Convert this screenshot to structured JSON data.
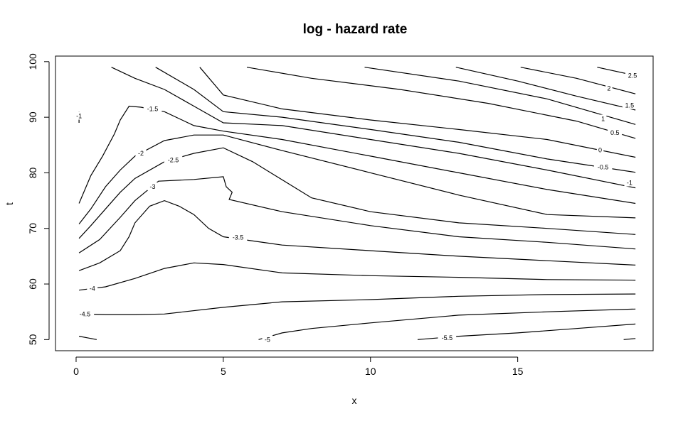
{
  "chart_data": {
    "type": "contour",
    "title": "log - hazard rate",
    "xlabel": "x",
    "ylabel": "t",
    "xlim": [
      -0.7,
      19.6
    ],
    "ylim": [
      48,
      101
    ],
    "x_ticks": [
      0,
      5,
      10,
      15
    ],
    "y_ticks": [
      50,
      60,
      70,
      80,
      90,
      100
    ],
    "grid": false,
    "legend": "none",
    "line_color": "#000000",
    "contours": [
      {
        "level": "2.5",
        "points": [
          [
            17.7,
            99
          ],
          [
            19.0,
            97.5
          ]
        ],
        "label_at": [
          18.9,
          97.5
        ]
      },
      {
        "level": "2",
        "points": [
          [
            15.1,
            99
          ],
          [
            17.0,
            97
          ],
          [
            19.0,
            94.2
          ]
        ],
        "label_at": [
          18.1,
          95.2
        ]
      },
      {
        "level": "1.5",
        "points": [
          [
            12.9,
            99
          ],
          [
            15.0,
            96.5
          ],
          [
            17.0,
            93.8
          ],
          [
            19.0,
            91.3
          ]
        ],
        "label_at": [
          18.8,
          92.1
        ]
      },
      {
        "level": "1",
        "points": [
          [
            9.8,
            99
          ],
          [
            13.0,
            96.5
          ],
          [
            16.0,
            93.3
          ],
          [
            19.0,
            88.7
          ]
        ],
        "label_at": [
          17.9,
          89.7
        ]
      },
      {
        "level": "0.5",
        "points": [
          [
            5.8,
            99
          ],
          [
            8.0,
            97
          ],
          [
            11.0,
            95
          ],
          [
            14.0,
            92.5
          ],
          [
            17.0,
            89.3
          ],
          [
            19.0,
            86.2
          ]
        ],
        "label_at": [
          18.3,
          87.2
        ]
      },
      {
        "level": "0",
        "points": [
          [
            4.2,
            99
          ],
          [
            5.0,
            94
          ],
          [
            7.0,
            91.5
          ],
          [
            10.0,
            89.5
          ],
          [
            13.0,
            87.8
          ],
          [
            16.0,
            86
          ],
          [
            19.0,
            82.8
          ]
        ],
        "label_at": [
          17.8,
          84.1
        ]
      },
      {
        "level": "-0.5",
        "points": [
          [
            2.7,
            99
          ],
          [
            4.0,
            95
          ],
          [
            5.0,
            91
          ],
          [
            7.0,
            90
          ],
          [
            10.0,
            87.8
          ],
          [
            13.0,
            85.5
          ],
          [
            16.0,
            82.5
          ],
          [
            19.0,
            80.1
          ]
        ],
        "label_at": [
          17.9,
          81.0
        ]
      },
      {
        "level": "-1",
        "points": [
          [
            1.2,
            99
          ],
          [
            2.0,
            97
          ],
          [
            3.0,
            95
          ],
          [
            4.0,
            92
          ],
          [
            5.0,
            89
          ],
          [
            7.0,
            88.5
          ],
          [
            10.0,
            86
          ],
          [
            13.0,
            83.5
          ],
          [
            16.0,
            80.5
          ],
          [
            19.0,
            77.3
          ]
        ],
        "label_at": [
          18.8,
          78.2
        ]
      },
      {
        "level": "-1.5",
        "points": [
          [
            0.1,
            74.5
          ],
          [
            0.5,
            79.5
          ],
          [
            0.9,
            83
          ],
          [
            1.3,
            87
          ],
          [
            1.5,
            89.5
          ],
          [
            1.8,
            92
          ],
          [
            2.2,
            91.8
          ],
          [
            3.0,
            91
          ],
          [
            4.0,
            88.5
          ],
          [
            5.0,
            87.5
          ],
          [
            7.0,
            86
          ],
          [
            10.0,
            83
          ],
          [
            13.0,
            80
          ],
          [
            16.0,
            77
          ],
          [
            19.0,
            74.5
          ]
        ],
        "label_at": [
          2.6,
          91.5
        ]
      },
      {
        "level": "-2",
        "points": [
          [
            0.1,
            70.8
          ],
          [
            0.5,
            73.5
          ],
          [
            1.0,
            77.5
          ],
          [
            1.5,
            80.5
          ],
          [
            2.0,
            83
          ],
          [
            3.0,
            85.8
          ],
          [
            4.0,
            86.8
          ],
          [
            5.0,
            86.8
          ],
          [
            7.0,
            84
          ],
          [
            10.0,
            80
          ],
          [
            13.0,
            76
          ],
          [
            16.0,
            72.5
          ],
          [
            19.0,
            71.9
          ]
        ],
        "label_at": [
          2.2,
          83.5
        ]
      },
      {
        "level": "-2.5",
        "points": [
          [
            0.1,
            68.2
          ],
          [
            0.5,
            70.5
          ],
          [
            1.0,
            73.5
          ],
          [
            1.5,
            76.5
          ],
          [
            2.0,
            79
          ],
          [
            3.0,
            82
          ],
          [
            4.0,
            83.5
          ],
          [
            5.0,
            84.5
          ],
          [
            6.0,
            82
          ],
          [
            8.0,
            75.5
          ],
          [
            10.0,
            73
          ],
          [
            13.0,
            71
          ],
          [
            16.0,
            70
          ],
          [
            19.0,
            68.9
          ]
        ],
        "label_at": [
          3.3,
          82.3
        ]
      },
      {
        "level": "-3",
        "points": [
          [
            0.1,
            65.6
          ],
          [
            0.8,
            68
          ],
          [
            1.5,
            72
          ],
          [
            2.0,
            75
          ],
          [
            2.8,
            78.5
          ],
          [
            4.0,
            78.8
          ],
          [
            5.0,
            79.3
          ],
          [
            5.1,
            77.5
          ],
          [
            5.3,
            76.5
          ],
          [
            5.2,
            75.2
          ],
          [
            7.0,
            73
          ],
          [
            10.0,
            70.5
          ],
          [
            13.0,
            68.5
          ],
          [
            16.0,
            67.5
          ],
          [
            19.0,
            66.3
          ]
        ],
        "label_at": [
          2.6,
          77.5
        ]
      },
      {
        "level": "-3.5",
        "points": [
          [
            0.1,
            62.4
          ],
          [
            0.8,
            63.8
          ],
          [
            1.5,
            66
          ],
          [
            1.8,
            68.5
          ],
          [
            2.0,
            71
          ],
          [
            2.5,
            74
          ],
          [
            3.0,
            75
          ],
          [
            3.5,
            74
          ],
          [
            4.0,
            72.5
          ],
          [
            4.5,
            70
          ],
          [
            5.0,
            68.5
          ],
          [
            7.0,
            67
          ],
          [
            10.0,
            66
          ],
          [
            13.0,
            65
          ],
          [
            16.0,
            64.2
          ],
          [
            19.0,
            63.4
          ]
        ],
        "label_at": [
          5.5,
          68.4
        ]
      },
      {
        "level": "-4",
        "points": [
          [
            0.1,
            58.9
          ],
          [
            1.0,
            59.5
          ],
          [
            2.0,
            61
          ],
          [
            3.0,
            62.8
          ],
          [
            4.0,
            63.8
          ],
          [
            5.0,
            63.5
          ],
          [
            7.0,
            62
          ],
          [
            10.0,
            61.5
          ],
          [
            13.0,
            61.2
          ],
          [
            16.0,
            60.8
          ],
          [
            19.0,
            60.7
          ]
        ],
        "label_at": [
          0.55,
          59.2
        ]
      },
      {
        "level": "-4.5",
        "points": [
          [
            0.1,
            54.6
          ],
          [
            1.0,
            54.5
          ],
          [
            2.0,
            54.5
          ],
          [
            3.0,
            54.6
          ],
          [
            5.0,
            55.8
          ],
          [
            7.0,
            56.8
          ],
          [
            10.0,
            57.2
          ],
          [
            13.0,
            57.8
          ],
          [
            16.0,
            58.1
          ],
          [
            19.0,
            58.2
          ]
        ],
        "label_at": [
          0.3,
          54.6
        ]
      },
      {
        "level": "-5",
        "points": [
          [
            6.2,
            50
          ],
          [
            7.0,
            51.2
          ],
          [
            8.0,
            52
          ],
          [
            10.0,
            53
          ],
          [
            13.0,
            54.4
          ],
          [
            16.0,
            55
          ],
          [
            19.0,
            55.5
          ]
        ],
        "label_at": [
          6.5,
          50.0
        ]
      },
      {
        "level": "-5.5",
        "points": [
          [
            11.6,
            50
          ],
          [
            13.0,
            50.6
          ],
          [
            15.0,
            51.2
          ],
          [
            17.0,
            52
          ],
          [
            19.0,
            52.8
          ]
        ],
        "label_at": [
          12.6,
          50.3
        ]
      },
      {
        "level": "",
        "points": [
          [
            0.1,
            50.6
          ],
          [
            0.7,
            50
          ]
        ],
        "label_at": null
      },
      {
        "level": "",
        "points": [
          [
            18.6,
            50
          ],
          [
            19.0,
            50.2
          ]
        ],
        "label_at": null
      },
      {
        "level": "-1",
        "points": [
          [
            0.1,
            89
          ],
          [
            0.1,
            91
          ]
        ],
        "label_at": [
          0.1,
          90.2
        ]
      }
    ]
  }
}
